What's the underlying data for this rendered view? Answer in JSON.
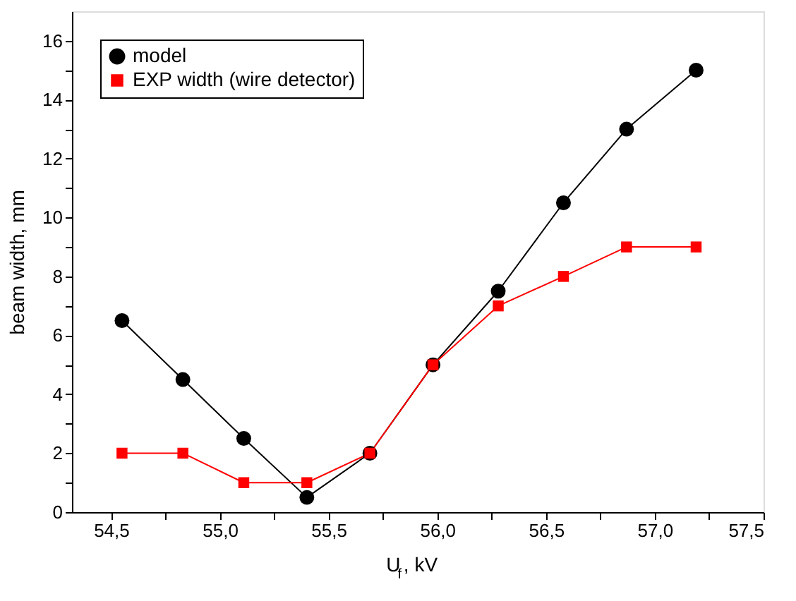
{
  "chart_data": {
    "type": "line",
    "xlabel": "U$_{f}$, kV",
    "ylabel": "beam width, mm",
    "x": [
      54.55,
      54.83,
      55.11,
      55.4,
      55.69,
      55.98,
      56.28,
      56.58,
      56.87,
      57.19
    ],
    "series": [
      {
        "name": "model",
        "color": "#000000",
        "marker": "circle",
        "values": [
          6.5,
          4.5,
          2.5,
          0.5,
          2,
          5,
          7.5,
          10.5,
          13,
          15
        ]
      },
      {
        "name": "EXP width (wire detector)",
        "color": "#ff0000",
        "marker": "square",
        "values": [
          2,
          2,
          1,
          1,
          2,
          5,
          7,
          8,
          9,
          9
        ]
      }
    ],
    "xlim": [
      54.32,
      57.5
    ],
    "ylim": [
      0,
      17
    ],
    "xticks": [
      {
        "value": 54.5,
        "label": "54,5"
      },
      {
        "value": 54.75,
        "label": null
      },
      {
        "value": 55.0,
        "label": "55,0"
      },
      {
        "value": 55.25,
        "label": null
      },
      {
        "value": 55.5,
        "label": "55,5"
      },
      {
        "value": 55.75,
        "label": null
      },
      {
        "value": 56.0,
        "label": "56,0"
      },
      {
        "value": 56.25,
        "label": null
      },
      {
        "value": 56.5,
        "label": "56,5"
      },
      {
        "value": 56.75,
        "label": null
      },
      {
        "value": 57.0,
        "label": "57,0"
      },
      {
        "value": 57.25,
        "label": null
      },
      {
        "value": 57.5,
        "label": "57,5"
      }
    ],
    "yticks": [
      0,
      {
        "value": 1,
        "label": null
      },
      2,
      {
        "value": 3,
        "label": null
      },
      4,
      {
        "value": 5,
        "label": null
      },
      6,
      {
        "value": 7,
        "label": null
      },
      8,
      {
        "value": 9,
        "label": null
      },
      10,
      {
        "value": 11,
        "label": null
      },
      12,
      {
        "value": 13,
        "label": null
      },
      14,
      {
        "value": 15,
        "label": null
      },
      16
    ],
    "legend": "top left",
    "grid": false,
    "line_style": "solid"
  }
}
